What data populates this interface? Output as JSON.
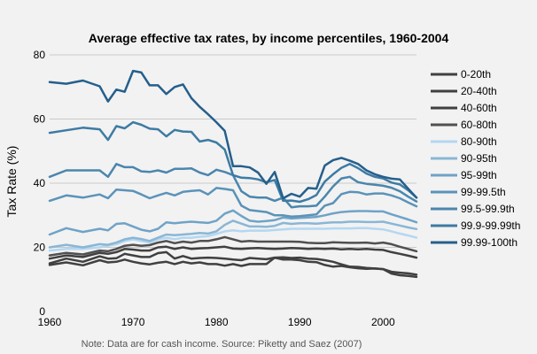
{
  "chart_data": {
    "type": "line",
    "title": "Average effective tax rates, by income percentiles, 1960-2004",
    "xlabel": "",
    "ylabel": "Tax Rate (%)",
    "xlim": [
      1960,
      2004
    ],
    "ylim": [
      0,
      80
    ],
    "xticks": [
      "1960",
      "1970",
      "1980",
      "1990",
      "2000"
    ],
    "yticks": [
      "0",
      "20",
      "40",
      "60",
      "80"
    ],
    "grid": "horizontal",
    "legend_position": "right",
    "note": "Note: Data are for cash income. Source: Piketty and Saez (2007)",
    "x": [
      1960,
      1962,
      1964,
      1966,
      1967,
      1968,
      1969,
      1970,
      1971,
      1972,
      1973,
      1974,
      1975,
      1976,
      1977,
      1978,
      1979,
      1980,
      1981,
      1982,
      1983,
      1984,
      1985,
      1986,
      1987,
      1988,
      1989,
      1990,
      1991,
      1992,
      1993,
      1994,
      1995,
      1996,
      1997,
      1998,
      1999,
      2000,
      2001,
      2002,
      2003,
      2004
    ],
    "series": [
      {
        "name": "0-20th",
        "color": "#404040",
        "values": [
          14.5,
          15.3,
          14.4,
          16,
          15.3,
          15.5,
          16.2,
          15.5,
          15,
          14.7,
          15.2,
          15.5,
          14.8,
          15.5,
          15,
          15.3,
          14.8,
          14.8,
          14.3,
          14.8,
          14.2,
          14.8,
          14.8,
          14.8,
          16.8,
          16.2,
          16.2,
          16,
          15.5,
          15.4,
          14.5,
          14,
          14.2,
          13.8,
          13.5,
          13.3,
          13.4,
          13.2,
          11.8,
          11.3,
          11.1,
          10.8
        ]
      },
      {
        "name": "20-40th",
        "color": "#404040",
        "values": [
          15,
          16.5,
          15.5,
          17.2,
          16.5,
          16.6,
          18,
          17.5,
          17,
          17,
          18.2,
          18.5,
          16.5,
          17.3,
          16.5,
          16.7,
          16.8,
          16.7,
          16.5,
          16.2,
          16,
          16.7,
          16.5,
          16.3,
          16.8,
          16.9,
          16.7,
          16.8,
          16.5,
          16.4,
          16,
          15.5,
          14.7,
          14,
          13.9,
          13.6,
          13.4,
          13.2,
          12.4,
          12.1,
          11.9,
          11.5
        ]
      },
      {
        "name": "40-60th",
        "color": "#404040",
        "values": [
          16.5,
          17.5,
          17,
          18.3,
          18,
          18.5,
          19.5,
          19.3,
          19,
          19,
          20,
          20.2,
          19.5,
          20,
          19.5,
          19.7,
          19.8,
          20,
          20.2,
          19.6,
          19.5,
          19.7,
          19.8,
          19.6,
          19.5,
          19.6,
          19.8,
          19.7,
          19.5,
          19.6,
          19.5,
          19.6,
          19.4,
          19.5,
          19.4,
          19.5,
          19.3,
          19.2,
          18.5,
          18,
          17.4,
          16.8
        ]
      },
      {
        "name": "60-80th",
        "color": "#505050",
        "values": [
          17.5,
          18.3,
          17.8,
          19,
          18.8,
          19.5,
          20.5,
          20.8,
          20.5,
          20.7,
          21.5,
          22,
          21.3,
          21.8,
          21.5,
          22,
          22,
          22.5,
          23.2,
          22.5,
          21.8,
          22,
          21.8,
          21.8,
          21.8,
          21.8,
          21.8,
          21.7,
          21.4,
          21.3,
          21.3,
          21.6,
          21.5,
          21.4,
          21.4,
          21.5,
          21.2,
          21.5,
          21,
          20.2,
          19.5,
          18.8
        ]
      },
      {
        "name": "80-90th",
        "color": "#b3d7f2",
        "values": [
          19,
          19.5,
          19.5,
          20,
          20.5,
          21,
          22,
          22.5,
          22,
          21.5,
          22.5,
          23,
          22.5,
          23,
          23,
          23.3,
          23.5,
          24.2,
          25,
          25.3,
          25,
          25.2,
          25.2,
          25.2,
          25.4,
          25.6,
          25.8,
          25.8,
          25.8,
          25.8,
          25.8,
          25.9,
          25.9,
          25.9,
          26,
          26,
          25.8,
          25.6,
          25,
          24.3,
          23.7,
          23
        ]
      },
      {
        "name": "90-95th",
        "color": "#8ab6d6",
        "values": [
          20,
          20.8,
          20,
          21,
          20.8,
          21.5,
          22.5,
          23,
          22.6,
          22,
          23,
          24,
          23.8,
          24,
          24.2,
          24.5,
          24.3,
          25,
          27,
          28.3,
          27.4,
          26.5,
          26.5,
          26.4,
          26.7,
          27.6,
          27.3,
          27.5,
          27.5,
          27.4,
          27.6,
          27.8,
          27.8,
          28,
          28,
          27.9,
          27.9,
          28,
          27.4,
          26.8,
          26.2,
          25.7
        ]
      },
      {
        "name": "95-99th",
        "color": "#6fa3c7",
        "values": [
          24,
          26,
          24.8,
          25.8,
          25.3,
          27.3,
          27.5,
          26.5,
          25.5,
          25,
          25.8,
          27.8,
          27.5,
          27.8,
          28,
          27.8,
          27.6,
          28.3,
          30.5,
          31.5,
          29.8,
          28.3,
          28,
          28.2,
          28.5,
          29.3,
          29,
          29.2,
          29.3,
          29.5,
          30,
          30.6,
          31,
          31.2,
          31.3,
          31.3,
          31.2,
          31.2,
          30.3,
          29.5,
          28.7,
          27.8
        ]
      },
      {
        "name": "99-99.5th",
        "color": "#5b93b8",
        "values": [
          34.5,
          36.2,
          35.5,
          36.5,
          35.3,
          38,
          37.8,
          37.6,
          36.5,
          35.3,
          36.2,
          37,
          36.2,
          37.3,
          37.6,
          37.8,
          36.5,
          38.5,
          38.2,
          37.8,
          33,
          31.6,
          31.3,
          31,
          30,
          30,
          29.6,
          29.7,
          30,
          30.3,
          33,
          33.8,
          36.6,
          37.3,
          37.2,
          36.5,
          36.8,
          36.8,
          36.2,
          35.3,
          34,
          32.8
        ]
      },
      {
        "name": "99.5-99.9th",
        "color": "#4b86ad",
        "values": [
          42,
          44,
          44,
          44,
          42,
          46,
          45,
          45,
          43.7,
          43.5,
          44,
          43.3,
          44.5,
          44.5,
          44.6,
          43.3,
          42.5,
          44.2,
          43.5,
          42.5,
          37.5,
          35.8,
          35.5,
          35.5,
          34.5,
          35.5,
          32.5,
          32.8,
          32.8,
          33,
          35.8,
          39,
          41.5,
          42,
          40.3,
          39.8,
          39.5,
          39.2,
          38.6,
          37.5,
          35.8,
          34.3
        ]
      },
      {
        "name": "99.9-99.99th",
        "color": "#3d7ba3",
        "values": [
          55.7,
          56.5,
          57.3,
          56.8,
          53.5,
          57.8,
          57.1,
          59,
          58.2,
          57,
          56.8,
          54.6,
          56.6,
          56.1,
          56,
          53,
          53.5,
          52.7,
          50.5,
          42.5,
          41.7,
          41.6,
          41.2,
          40.3,
          41,
          34.5,
          34.6,
          34.2,
          35,
          36.3,
          40.5,
          42.8,
          44.8,
          46,
          44.7,
          43,
          42,
          41.5,
          40.2,
          39.6,
          37.8,
          35.5
        ]
      },
      {
        "name": "99.99-100th",
        "color": "#255f8c",
        "values": [
          71.5,
          71,
          72,
          70.2,
          65.5,
          69.2,
          68.5,
          75,
          74.5,
          70.5,
          70.5,
          67.8,
          70,
          70.8,
          66.5,
          63.8,
          61.5,
          59,
          56.3,
          45.3,
          45.3,
          44.9,
          43.3,
          39.8,
          43.5,
          35.3,
          36.7,
          35.8,
          38.5,
          38.3,
          45.5,
          47.2,
          47.9,
          47,
          46,
          44,
          42.8,
          42,
          41.4,
          41.2,
          38.3,
          35.5
        ]
      }
    ]
  }
}
